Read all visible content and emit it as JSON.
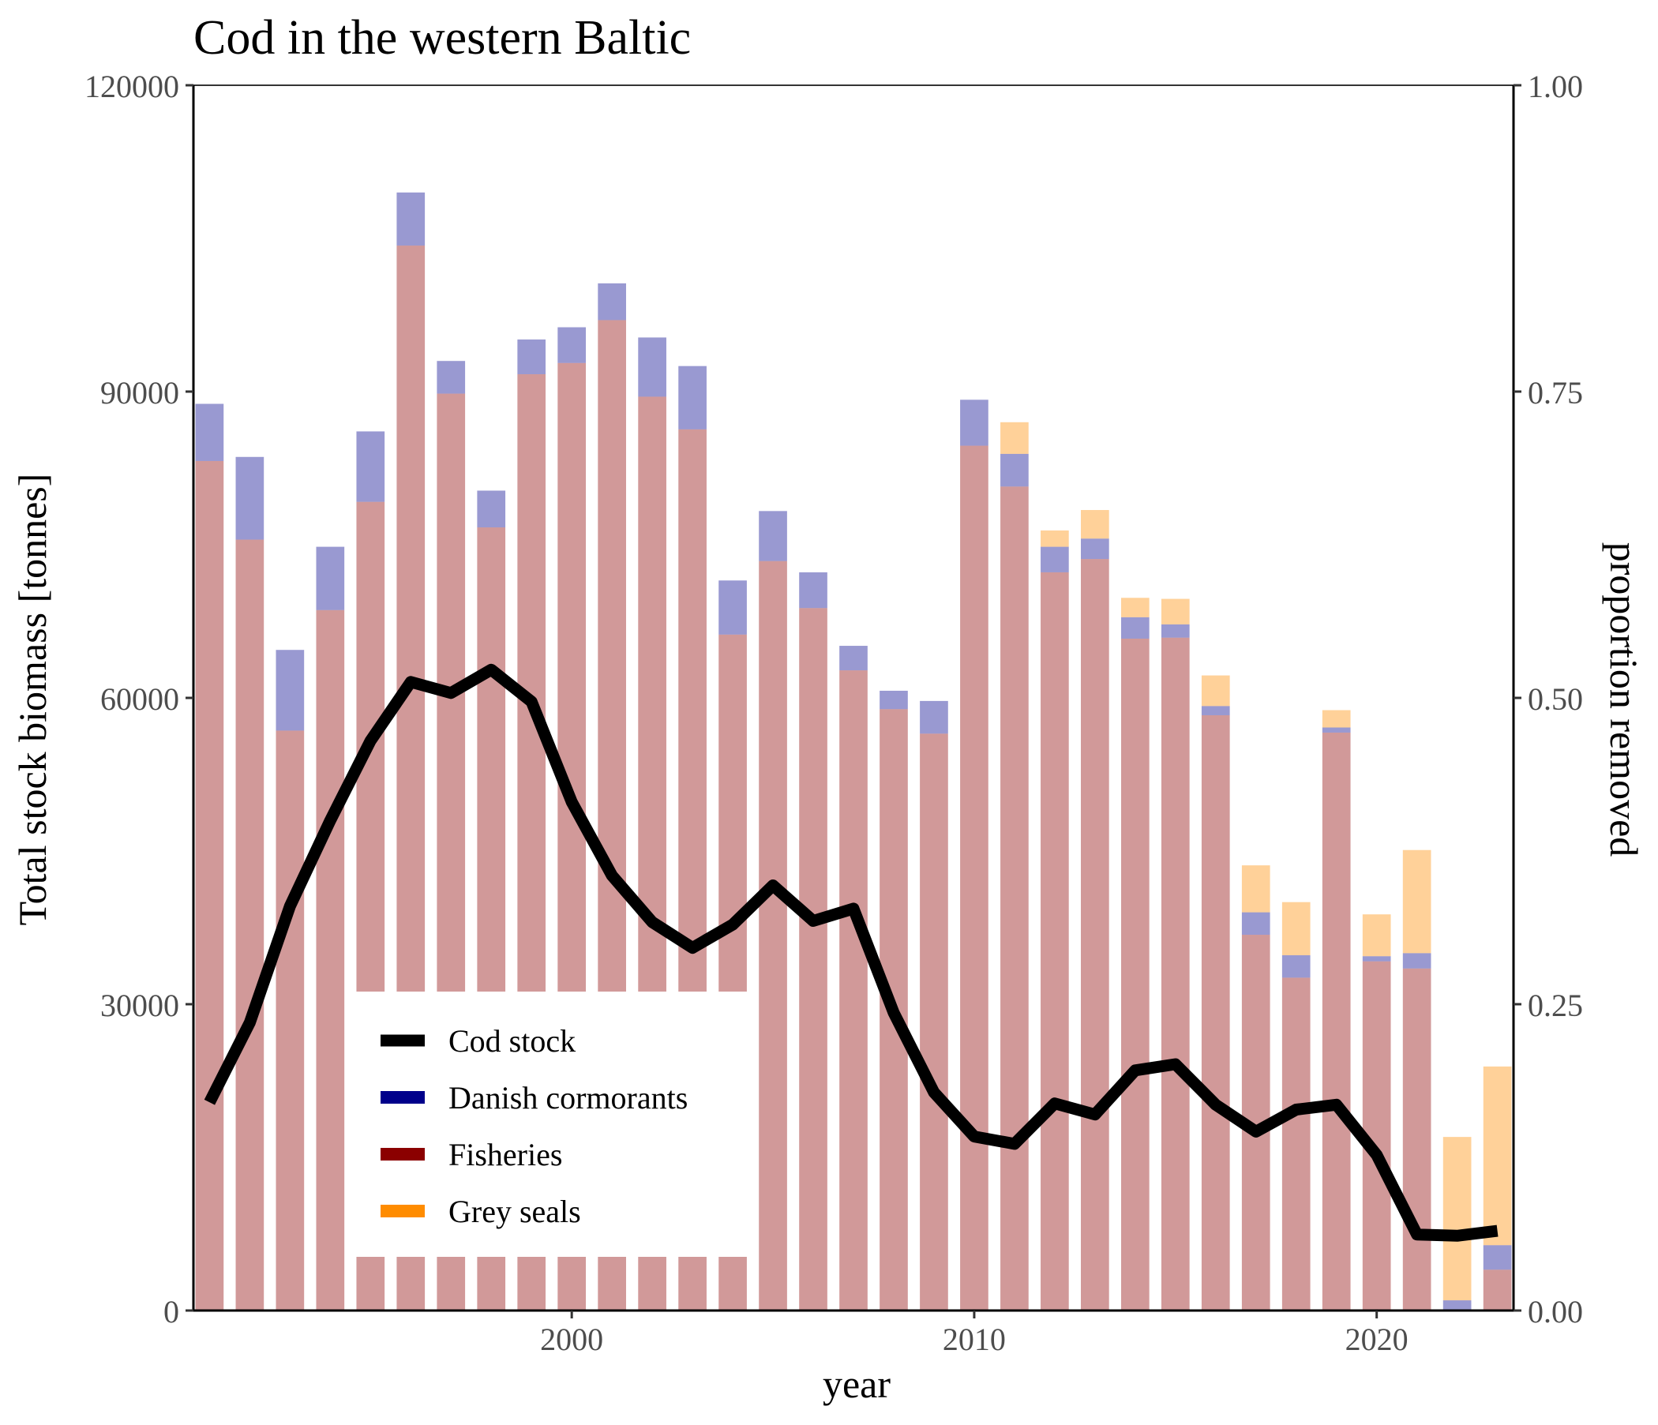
{
  "chart_data": {
    "type": "bar",
    "title": "Cod in the western Baltic",
    "xlabel": "year",
    "ylabel": "Total stock biomass [tonnes]",
    "y2label": "proportion removed",
    "xlim": [
      1990.6,
      2023.4
    ],
    "ylim": [
      0,
      120000
    ],
    "y2lim": [
      0,
      1
    ],
    "x_ticks": [
      2000,
      2010,
      2020
    ],
    "y_ticks": [
      0,
      30000,
      60000,
      90000,
      120000
    ],
    "y2_ticks": [
      "0.00",
      "0.25",
      "0.50",
      "0.75",
      "1.00"
    ],
    "grid": false,
    "legend_position": "bottom-left inside",
    "years": [
      1991,
      1992,
      1993,
      1994,
      1995,
      1996,
      1997,
      1998,
      1999,
      2000,
      2001,
      2002,
      2003,
      2004,
      2005,
      2006,
      2007,
      2008,
      2009,
      2010,
      2011,
      2012,
      2013,
      2014,
      2015,
      2016,
      2017,
      2018,
      2019,
      2020,
      2021,
      2022,
      2023
    ],
    "colors": {
      "Fisheries": "#8b0000",
      "Danish cormorants": "#00008b",
      "Grey seals": "#ff8c00",
      "Cod stock": "#000000"
    },
    "bar_opacity": 0.4,
    "series": [
      {
        "name": "Fisheries",
        "kind": "stacked-bar",
        "axis": "left",
        "values": [
          83200,
          75500,
          56800,
          68600,
          79200,
          104300,
          89800,
          76700,
          91700,
          92800,
          97000,
          89500,
          86300,
          66200,
          73400,
          68800,
          62700,
          58900,
          56500,
          84700,
          80700,
          72300,
          73600,
          65800,
          65900,
          58300,
          36800,
          32600,
          56600,
          34200,
          33500,
          0,
          4000
        ]
      },
      {
        "name": "Danish cormorants",
        "kind": "stacked-bar",
        "axis": "left",
        "values": [
          5600,
          8100,
          7900,
          6200,
          6900,
          5200,
          3200,
          3600,
          3400,
          3500,
          3600,
          5800,
          6200,
          5300,
          4900,
          3500,
          2400,
          1800,
          3200,
          4500,
          3200,
          2500,
          2000,
          2100,
          1300,
          900,
          2200,
          2200,
          500,
          500,
          1500,
          1000,
          2400
        ]
      },
      {
        "name": "Grey seals",
        "kind": "stacked-bar",
        "axis": "left",
        "values": [
          0,
          0,
          0,
          0,
          0,
          0,
          0,
          0,
          0,
          0,
          0,
          0,
          0,
          0,
          0,
          0,
          0,
          0,
          0,
          0,
          3100,
          1600,
          2800,
          1900,
          2500,
          3000,
          4600,
          5200,
          1700,
          4100,
          10100,
          16000,
          17500
        ]
      },
      {
        "name": "Cod stock",
        "kind": "line",
        "axis": "right",
        "values": [
          0.17,
          0.235,
          0.33,
          0.4,
          0.465,
          0.513,
          0.504,
          0.523,
          0.497,
          0.415,
          0.355,
          0.317,
          0.296,
          0.315,
          0.347,
          0.318,
          0.328,
          0.243,
          0.178,
          0.142,
          0.136,
          0.169,
          0.16,
          0.196,
          0.201,
          0.168,
          0.146,
          0.164,
          0.168,
          0.127,
          0.062,
          0.061,
          0.065
        ]
      }
    ],
    "legend": [
      {
        "label": "Cod stock",
        "swatch": "line"
      },
      {
        "label": "Danish cormorants",
        "swatch": "bar"
      },
      {
        "label": "Fisheries",
        "swatch": "bar"
      },
      {
        "label": "Grey seals",
        "swatch": "bar"
      }
    ]
  }
}
